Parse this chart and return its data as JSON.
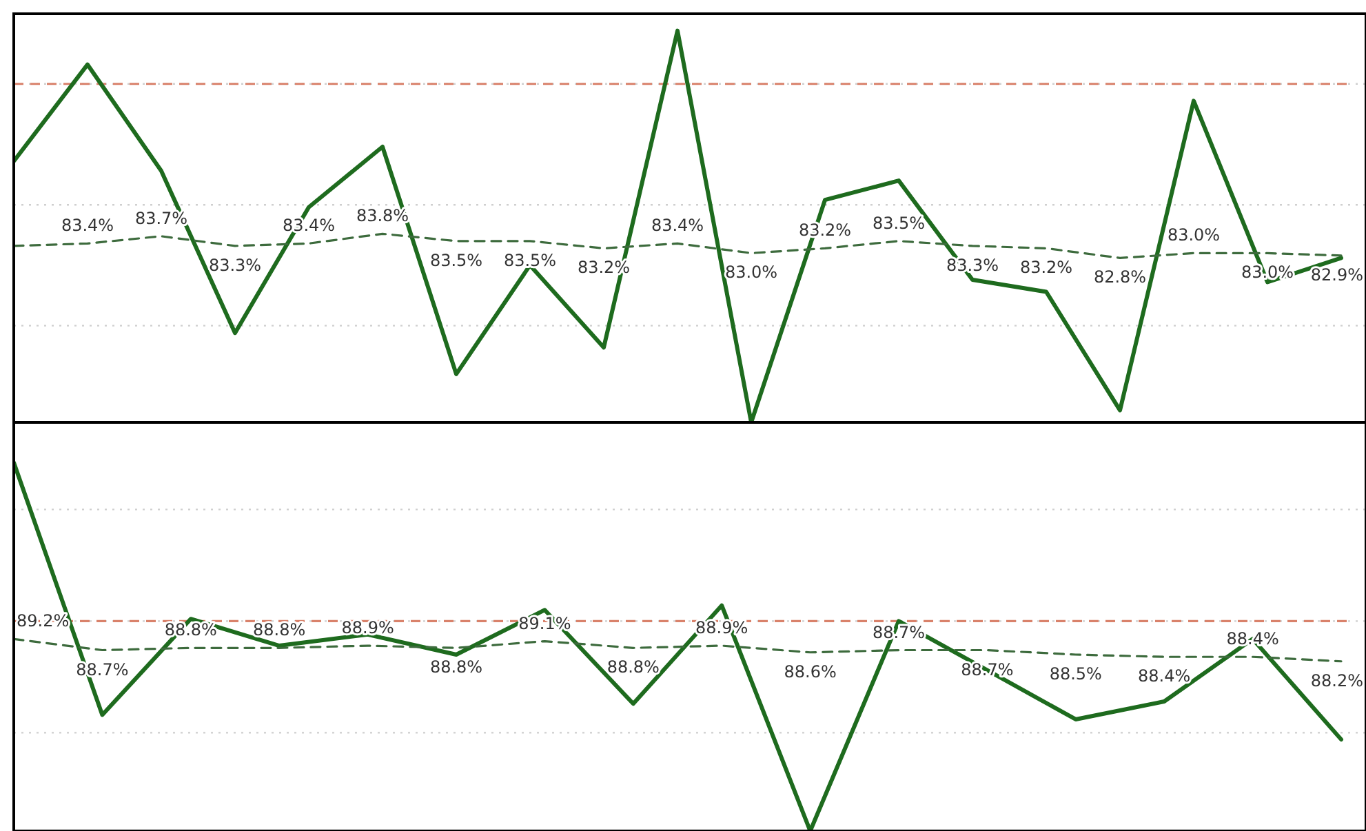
{
  "chart_data": [
    {
      "type": "line",
      "categories": [
        null,
        null,
        null,
        null,
        null,
        null,
        null,
        null,
        null,
        null,
        null,
        null,
        null,
        null,
        null,
        null,
        null,
        null,
        null
      ],
      "ylim": [
        76,
        92.9
      ],
      "yticks": [
        {
          "value": 80,
          "label": null
        },
        {
          "value": 85,
          "label": null
        },
        {
          "value": 90,
          "label": null
        }
      ],
      "grid": "y",
      "ref_lines": [
        {
          "axis": "y",
          "value": 90,
          "color": "#d9826b",
          "line_style": "dashed"
        }
      ],
      "series": [
        {
          "color": "#1e6b1e",
          "line_style": "solid",
          "values": [
            86.8,
            90.8,
            86.4,
            79.7,
            84.9,
            87.4,
            78.0,
            82.5,
            79.1,
            92.2,
            76.0,
            85.2,
            86.0,
            81.9,
            81.4,
            76.5,
            89.3,
            81.8,
            82.8
          ]
        },
        {
          "color": "#3d6b3d",
          "line_style": "dashed",
          "values": [
            83.3,
            83.4,
            83.7,
            83.3,
            83.4,
            83.8,
            83.5,
            83.5,
            83.2,
            83.4,
            83.0,
            83.2,
            83.5,
            83.3,
            83.2,
            82.8,
            83.0,
            83.0,
            82.9
          ],
          "value_labels": [
            null,
            "83.4%",
            "83.7%",
            "83.3%",
            "83.4%",
            "83.8%",
            "83.5%",
            "83.5%",
            "83.2%",
            "83.4%",
            "83.0%",
            "83.2%",
            "83.5%",
            "83.3%",
            "83.2%",
            "82.8%",
            "83.0%",
            "83.0%",
            "82.9%"
          ]
        }
      ]
    },
    {
      "type": "line",
      "categories": [
        null,
        null,
        null,
        null,
        null,
        null,
        null,
        null,
        null,
        null,
        null,
        null,
        null,
        null,
        null,
        null
      ],
      "ylim": [
        80.6,
        98.9
      ],
      "yticks": [
        {
          "value": 85,
          "label": null
        },
        {
          "value": 90,
          "label": null
        },
        {
          "value": 95,
          "label": null
        }
      ],
      "grid": "y",
      "ref_lines": [
        {
          "axis": "y",
          "value": 90,
          "color": "#d9826b",
          "line_style": "dashed"
        }
      ],
      "series": [
        {
          "color": "#1e6b1e",
          "line_style": "solid",
          "values": [
            97.1,
            85.8,
            90.1,
            88.9,
            89.4,
            88.5,
            90.5,
            86.3,
            90.7,
            80.6,
            90.0,
            87.8,
            85.6,
            86.4,
            89.2,
            84.7
          ]
        },
        {
          "color": "#3d6b3d",
          "line_style": "dashed",
          "values": [
            89.2,
            88.7,
            88.8,
            88.8,
            88.9,
            88.8,
            89.1,
            88.8,
            88.9,
            88.6,
            88.7,
            88.7,
            88.5,
            88.4,
            88.4,
            88.2
          ],
          "value_labels": [
            "89.2%",
            "88.7%",
            "88.8%",
            "88.8%",
            "88.9%",
            "88.8%",
            "89.1%",
            "88.8%",
            "88.9%",
            "88.6%",
            "88.7%",
            "88.7%",
            "88.5%",
            "88.4%",
            "88.4%",
            "88.2%"
          ]
        }
      ]
    }
  ]
}
